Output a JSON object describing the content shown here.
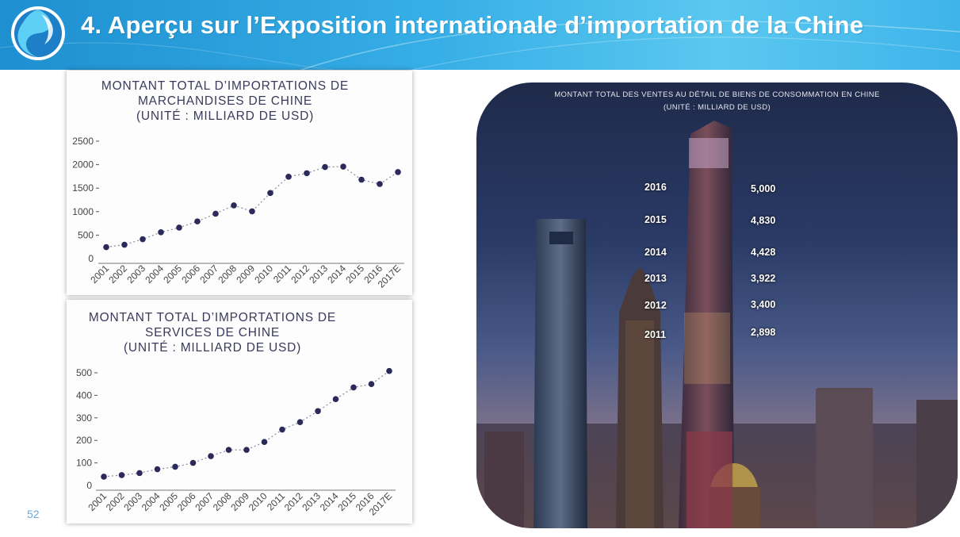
{
  "header": {
    "title": "4. Aperçu sur l’Exposition internationale d’importation de la Chine"
  },
  "page_number": "52",
  "chart_data": [
    {
      "type": "line",
      "title_lines": [
        "MONTANT TOTAL D’IMPORTATIONS DE",
        "MARCHANDISES DE CHINE",
        "(UNITÉ : MILLIARD DE USD)"
      ],
      "categories": [
        "2001",
        "2002",
        "2003",
        "2004",
        "2005",
        "2006",
        "2007",
        "2008",
        "2009",
        "2010",
        "2011",
        "2012",
        "2013",
        "2014",
        "2015",
        "2016",
        "2017E"
      ],
      "values": [
        244,
        295,
        413,
        561,
        660,
        792,
        956,
        1133,
        1006,
        1396,
        1743,
        1818,
        1950,
        1959,
        1680,
        1588,
        1842
      ],
      "yticks": [
        "0",
        "500",
        "1000",
        "1500",
        "2000",
        "2500"
      ],
      "ylim": [
        0,
        2500
      ],
      "color": "#2b2a5a"
    },
    {
      "type": "line",
      "title_lines": [
        "MONTANT TOTAL D’IMPORTATIONS DE",
        "SERVICES DE CHINE",
        "(UNITÉ : MILLIARD DE USD)"
      ],
      "categories": [
        "2001",
        "2002",
        "2003",
        "2004",
        "2005",
        "2006",
        "2007",
        "2008",
        "2009",
        "2010",
        "2011",
        "2012",
        "2013",
        "2014",
        "2015",
        "2016",
        "2017E"
      ],
      "values": [
        39,
        46,
        55,
        72,
        83,
        100,
        130,
        158,
        158,
        193,
        248,
        281,
        330,
        383,
        435,
        450,
        508
      ],
      "yticks": [
        "0",
        "100",
        "200",
        "300",
        "400",
        "500"
      ],
      "ylim": [
        0,
        540
      ],
      "color": "#2b2a5a"
    }
  ],
  "retail": {
    "title_line1": "MONTANT TOTAL DES VENTES AU DÉTAIL DE BIENS DE CONSOMMATION EN CHINE",
    "title_line2": "(UNITÉ : MILLIARD DE USD)",
    "rows": [
      {
        "year": "2016",
        "value": "5,000"
      },
      {
        "year": "2015",
        "value": "4,830"
      },
      {
        "year": "2014",
        "value": "4,428"
      },
      {
        "year": "2013",
        "value": "3,922"
      },
      {
        "year": "2012",
        "value": "3,400"
      },
      {
        "year": "2011",
        "value": "2,898"
      }
    ]
  }
}
